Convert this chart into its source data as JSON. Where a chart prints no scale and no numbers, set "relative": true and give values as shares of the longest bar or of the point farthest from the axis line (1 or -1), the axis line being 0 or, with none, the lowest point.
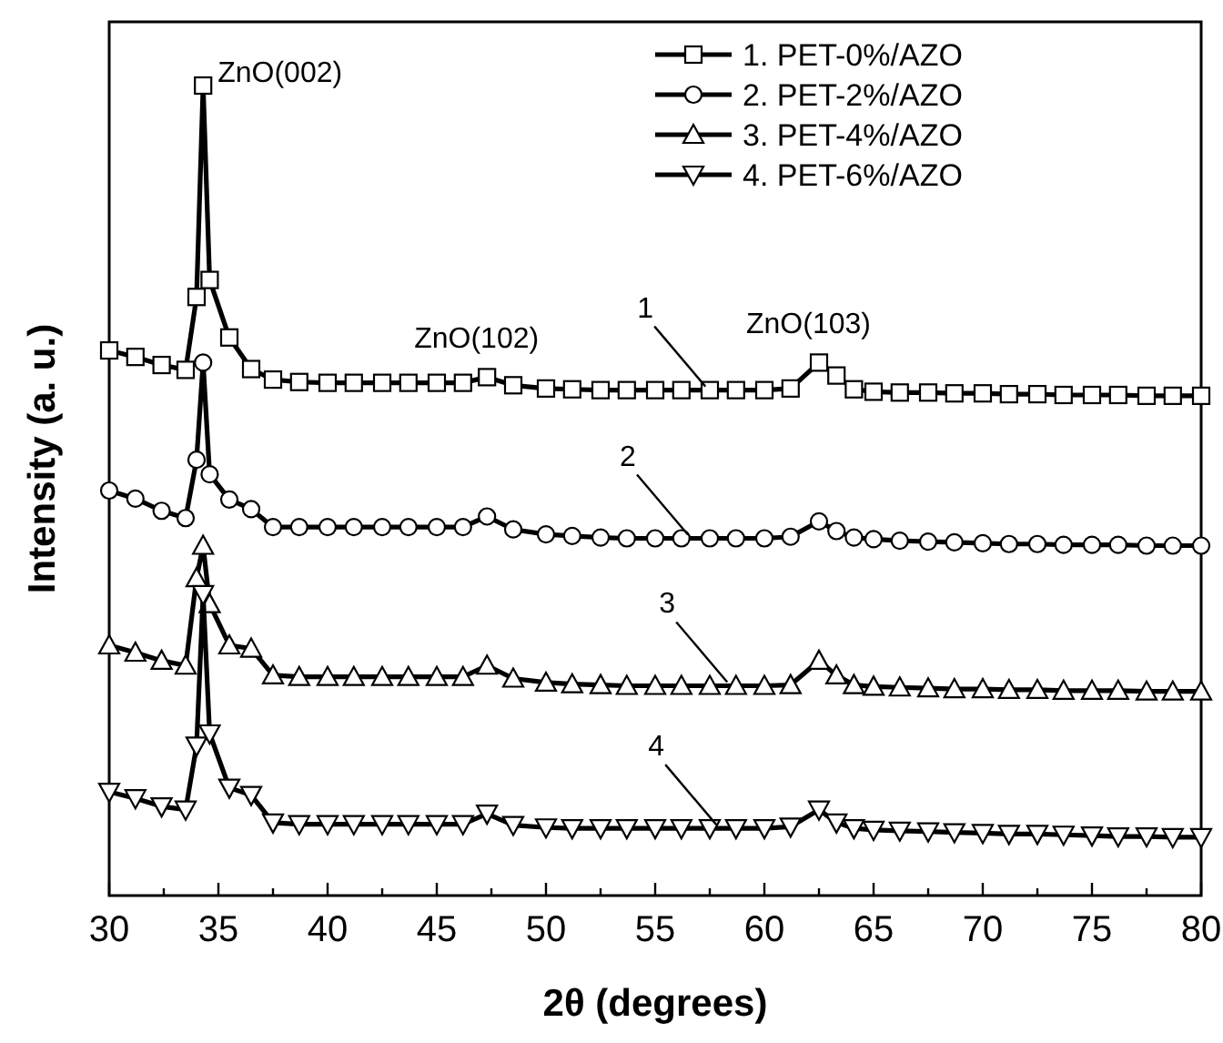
{
  "chart_data": {
    "type": "line",
    "relative": true,
    "xlabel": "2θ (degrees)",
    "ylabel": "Intensity (a. u.)",
    "x": [
      30,
      31.2,
      32.4,
      33.5,
      34,
      34.3,
      34.6,
      35.5,
      36.5,
      37.5,
      38.7,
      40,
      41.2,
      42.5,
      43.7,
      45,
      46.2,
      47.3,
      48.5,
      50,
      51.2,
      52.5,
      53.7,
      55,
      56.2,
      57.5,
      58.7,
      60,
      61.2,
      62.5,
      63.3,
      64.1,
      65,
      66.2,
      67.5,
      68.7,
      70,
      71.2,
      72.5,
      73.7,
      75,
      76.2,
      77.5,
      78.7,
      80
    ],
    "xlim": [
      30,
      80
    ],
    "xticks": [
      30,
      {
        "value": 32.5,
        "label": null
      },
      35,
      {
        "value": 37.5,
        "label": null
      },
      40,
      {
        "value": 42.5,
        "label": null
      },
      45,
      {
        "value": 47.5,
        "label": null
      },
      50,
      {
        "value": 52.5,
        "label": null
      },
      55,
      {
        "value": 57.5,
        "label": null
      },
      60,
      {
        "value": 62.5,
        "label": null
      },
      65,
      {
        "value": 67.5,
        "label": null
      },
      70,
      {
        "value": 72.5,
        "label": null
      },
      75,
      {
        "value": 77.5,
        "label": null
      },
      80
    ],
    "legend": "top right",
    "line_style": "solid",
    "grid": false,
    "series": [
      {
        "name": "1. PET-0%/AZO",
        "color": "#000000",
        "marker": "square",
        "values": [
          0.673,
          0.665,
          0.655,
          0.649,
          0.739,
          1.0,
          0.76,
          0.689,
          0.65,
          0.637,
          0.634,
          0.633,
          0.633,
          0.633,
          0.633,
          0.633,
          0.633,
          0.64,
          0.63,
          0.626,
          0.625,
          0.624,
          0.624,
          0.624,
          0.624,
          0.624,
          0.624,
          0.624,
          0.626,
          0.658,
          0.642,
          0.625,
          0.622,
          0.621,
          0.621,
          0.62,
          0.62,
          0.619,
          0.619,
          0.618,
          0.618,
          0.618,
          0.617,
          0.617,
          0.617
        ]
      },
      {
        "name": "2. PET-2%/AZO",
        "color": "#000000",
        "marker": "circle",
        "values": [
          0.5,
          0.49,
          0.475,
          0.466,
          0.538,
          0.658,
          0.52,
          0.489,
          0.477,
          0.455,
          0.455,
          0.455,
          0.455,
          0.455,
          0.455,
          0.455,
          0.455,
          0.468,
          0.452,
          0.446,
          0.444,
          0.442,
          0.441,
          0.441,
          0.441,
          0.441,
          0.441,
          0.441,
          0.443,
          0.462,
          0.45,
          0.442,
          0.44,
          0.438,
          0.437,
          0.436,
          0.435,
          0.434,
          0.434,
          0.433,
          0.433,
          0.433,
          0.432,
          0.432,
          0.432
        ]
      },
      {
        "name": "3. PET-4%/AZO",
        "color": "#000000",
        "marker": "triangle",
        "values": [
          0.309,
          0.3,
          0.29,
          0.284,
          0.392,
          0.432,
          0.36,
          0.309,
          0.305,
          0.272,
          0.27,
          0.27,
          0.27,
          0.27,
          0.27,
          0.27,
          0.27,
          0.284,
          0.268,
          0.263,
          0.261,
          0.26,
          0.259,
          0.259,
          0.259,
          0.259,
          0.259,
          0.259,
          0.26,
          0.29,
          0.272,
          0.26,
          0.258,
          0.257,
          0.256,
          0.255,
          0.255,
          0.254,
          0.254,
          0.253,
          0.253,
          0.253,
          0.252,
          0.252,
          0.252
        ]
      },
      {
        "name": "4. PET-6%/AZO",
        "color": "#000000",
        "marker": "triangle-down",
        "values": [
          0.128,
          0.12,
          0.11,
          0.106,
          0.185,
          0.372,
          0.2,
          0.133,
          0.124,
          0.09,
          0.088,
          0.088,
          0.088,
          0.088,
          0.088,
          0.088,
          0.088,
          0.101,
          0.087,
          0.084,
          0.083,
          0.083,
          0.083,
          0.083,
          0.083,
          0.083,
          0.083,
          0.083,
          0.085,
          0.106,
          0.09,
          0.083,
          0.081,
          0.08,
          0.079,
          0.078,
          0.077,
          0.076,
          0.076,
          0.075,
          0.074,
          0.073,
          0.073,
          0.072,
          0.072
        ]
      }
    ],
    "annotations": [
      {
        "text": "ZnO(002)",
        "x": 34.3,
        "y": 1.0
      },
      {
        "text": "ZnO(102)",
        "x": 47.3,
        "y": 0.64
      },
      {
        "text": "ZnO(103)",
        "x": 62.5,
        "y": 0.658
      },
      {
        "text": "1",
        "x": 57.3,
        "y": 0.624
      },
      {
        "text": "2",
        "x": 56.5,
        "y": 0.441
      },
      {
        "text": "3",
        "x": 58.3,
        "y": 0.259
      },
      {
        "text": "4",
        "x": 57.8,
        "y": 0.083
      }
    ]
  }
}
